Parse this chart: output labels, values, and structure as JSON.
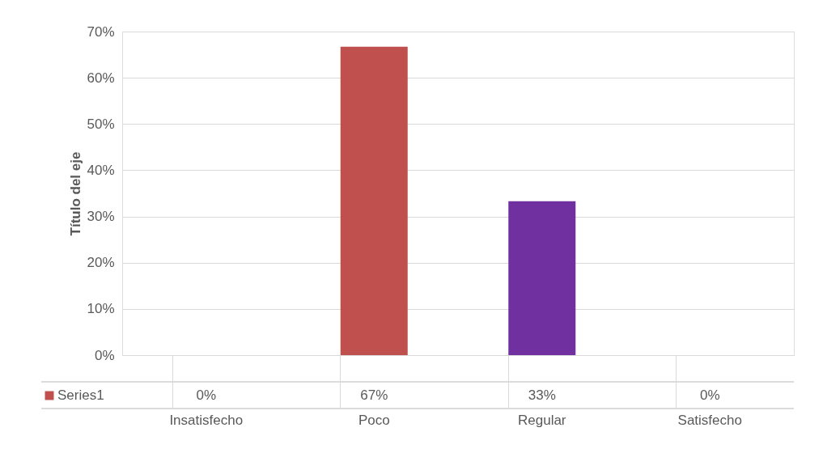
{
  "chart_data": {
    "type": "bar",
    "ylabel": "Título del eje",
    "categories": [
      "Insatisfecho",
      "Poco",
      "Regular",
      "Satisfecho"
    ],
    "series": [
      {
        "name": "Series1",
        "color": "#c0504d",
        "colors": [
          "#c0504d",
          "#c0504d",
          "#7030a0",
          "#c0504d"
        ],
        "values": [
          0,
          66.7,
          33.3,
          0
        ],
        "value_labels": [
          "0%",
          "67%",
          "33%",
          "0%"
        ]
      }
    ],
    "ylim": [
      0,
      70
    ],
    "yticks": [
      {
        "value": 0,
        "label": "0%"
      },
      {
        "value": 10,
        "label": "10%"
      },
      {
        "value": 20,
        "label": "20%"
      },
      {
        "value": 30,
        "label": "30%"
      },
      {
        "value": 40,
        "label": "40%"
      },
      {
        "value": 50,
        "label": "50%"
      },
      {
        "value": 60,
        "label": "60%"
      },
      {
        "value": 70,
        "label": "70%"
      }
    ],
    "grid": "y",
    "legend": "bottom left"
  }
}
